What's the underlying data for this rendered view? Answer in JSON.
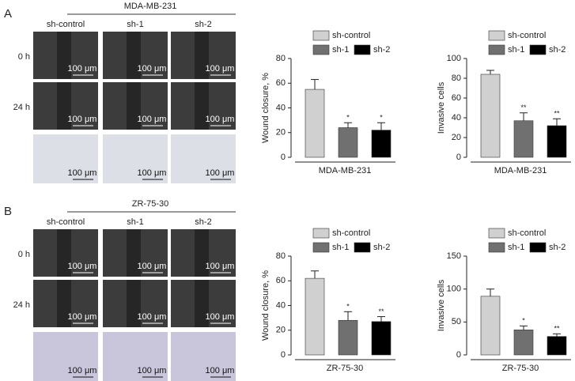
{
  "panels": [
    {
      "letter": "A",
      "cell_line": "MDA-MB-231",
      "columns": [
        "sh-control",
        "sh-1",
        "sh-2"
      ],
      "rows": [
        "0 h",
        "24 h"
      ],
      "scale_bar": "100 μm"
    },
    {
      "letter": "B",
      "cell_line": "ZR-75-30",
      "columns": [
        "sh-control",
        "sh-1",
        "sh-2"
      ],
      "rows": [
        "0 h",
        "24 h"
      ],
      "scale_bar": "100 μm"
    }
  ],
  "chart_data": [
    {
      "type": "bar",
      "ylabel": "Wound closure, %",
      "xlabel": "MDA-MB-231",
      "ylim": [
        0,
        80
      ],
      "yticks": [
        0,
        20,
        40,
        60,
        80
      ],
      "series": [
        {
          "name": "sh-control",
          "color": "#d0d0d0",
          "values": [
            55
          ],
          "errors": [
            8
          ]
        },
        {
          "name": "sh-1",
          "color": "#707070",
          "values": [
            24
          ],
          "errors": [
            4
          ],
          "annotations": [
            "*"
          ]
        },
        {
          "name": "sh-2",
          "color": "#000000",
          "values": [
            22
          ],
          "errors": [
            6
          ],
          "annotations": [
            "*"
          ]
        }
      ]
    },
    {
      "type": "bar",
      "ylabel": "Invasive cells",
      "xlabel": "MDA-MB-231",
      "ylim": [
        0,
        100
      ],
      "yticks": [
        0,
        20,
        40,
        60,
        80,
        100
      ],
      "series": [
        {
          "name": "sh-control",
          "color": "#d0d0d0",
          "values": [
            84
          ],
          "errors": [
            4
          ]
        },
        {
          "name": "sh-1",
          "color": "#707070",
          "values": [
            37
          ],
          "errors": [
            8
          ],
          "annotations": [
            "**"
          ]
        },
        {
          "name": "sh-2",
          "color": "#000000",
          "values": [
            32
          ],
          "errors": [
            7
          ],
          "annotations": [
            "**"
          ]
        }
      ]
    },
    {
      "type": "bar",
      "ylabel": "Wound closure, %",
      "xlabel": "ZR-75-30",
      "ylim": [
        0,
        80
      ],
      "yticks": [
        0,
        20,
        40,
        60,
        80
      ],
      "series": [
        {
          "name": "sh-control",
          "color": "#d0d0d0",
          "values": [
            62
          ],
          "errors": [
            6
          ]
        },
        {
          "name": "sh-1",
          "color": "#707070",
          "values": [
            28
          ],
          "errors": [
            7
          ],
          "annotations": [
            "*"
          ]
        },
        {
          "name": "sh-2",
          "color": "#000000",
          "values": [
            27
          ],
          "errors": [
            4
          ],
          "annotations": [
            "**"
          ]
        }
      ]
    },
    {
      "type": "bar",
      "ylabel": "Invasive cells",
      "xlabel": "ZR-75-30",
      "ylim": [
        0,
        150
      ],
      "yticks": [
        0,
        50,
        100,
        150
      ],
      "series": [
        {
          "name": "sh-control",
          "color": "#d0d0d0",
          "values": [
            89
          ],
          "errors": [
            11
          ]
        },
        {
          "name": "sh-1",
          "color": "#707070",
          "values": [
            38
          ],
          "errors": [
            6
          ],
          "annotations": [
            "*"
          ]
        },
        {
          "name": "sh-2",
          "color": "#000000",
          "values": [
            28
          ],
          "errors": [
            4
          ],
          "annotations": [
            "**"
          ]
        }
      ]
    }
  ]
}
